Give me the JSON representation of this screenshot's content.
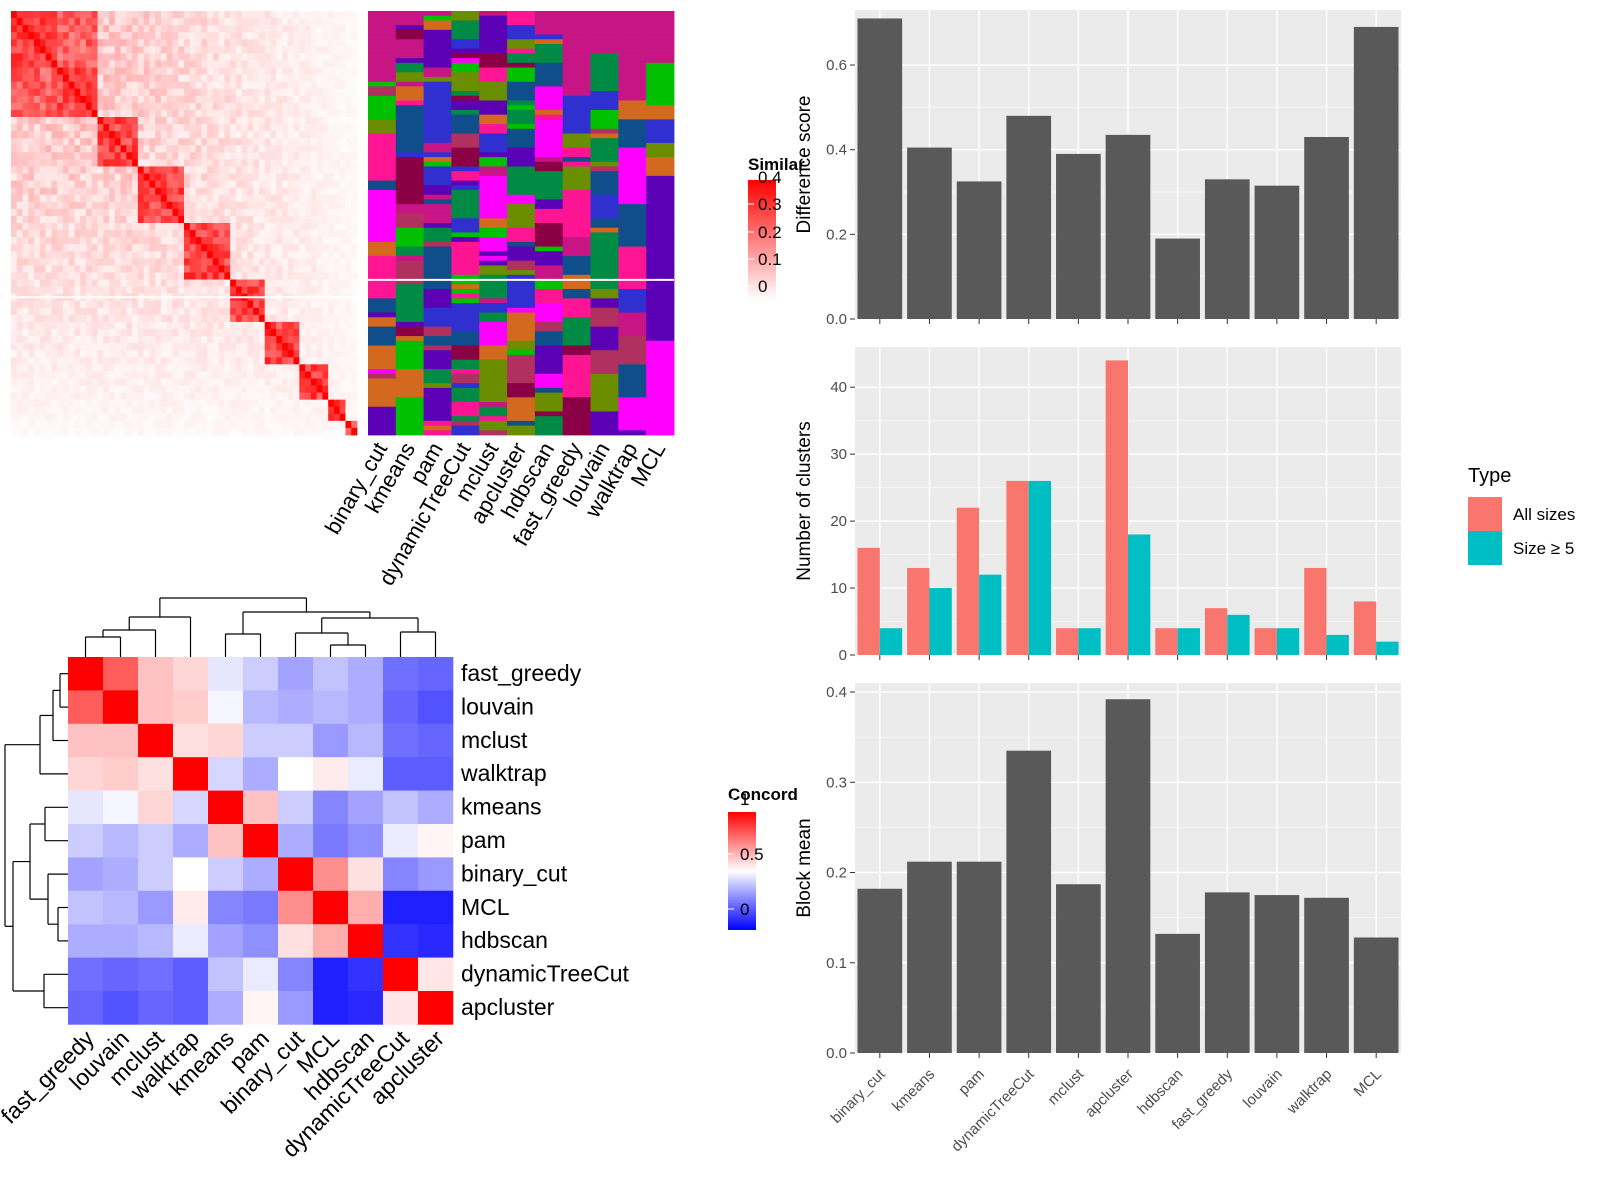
{
  "colors": {
    "sim_low": "#ffffff",
    "sim_high": "#ff0000",
    "conc_low": "#0000ff",
    "conc_mid": "#ffffff",
    "conc_high": "#ff0000",
    "bar_dark": "#595959",
    "panel_bg": "#ebebeb",
    "all_sizes": "#f8766d",
    "size5": "#00bfc4",
    "cluster_palette": [
      "#c71585",
      "#8b0045",
      "#5b00b5",
      "#6b8e00",
      "#d2691e",
      "#008b45",
      "#ff00ff",
      "#00c000",
      "#3030d0",
      "#104e8b",
      "#ff1493",
      "#b03060"
    ]
  },
  "similarity_legend": {
    "title": "Similar",
    "ticks": [
      "0.4",
      "0.3",
      "0.2",
      "0.1",
      "0"
    ]
  },
  "concordance_legend": {
    "title": "Concord",
    "ticks": [
      "1",
      "0.5",
      "0"
    ]
  },
  "partition_methods": [
    "binary_cut",
    "kmeans",
    "pam",
    "dynamicTreeCut",
    "mclust",
    "apcluster",
    "hdbscan",
    "fast_greedy",
    "louvain",
    "walktrap",
    "MCL"
  ],
  "concordance_methods": [
    "fast_greedy",
    "louvain",
    "mclust",
    "walktrap",
    "kmeans",
    "pam",
    "binary_cut",
    "MCL",
    "hdbscan",
    "dynamicTreeCut",
    "apcluster"
  ],
  "concordance_matrix": [
    [
      1.0,
      0.82,
      0.62,
      0.58,
      0.45,
      0.4,
      0.32,
      0.38,
      0.34,
      0.22,
      0.2
    ],
    [
      0.82,
      1.0,
      0.62,
      0.6,
      0.48,
      0.36,
      0.34,
      0.36,
      0.34,
      0.2,
      0.16
    ],
    [
      0.62,
      0.62,
      1.0,
      0.56,
      0.58,
      0.4,
      0.4,
      0.3,
      0.36,
      0.22,
      0.2
    ],
    [
      0.58,
      0.6,
      0.56,
      1.0,
      0.42,
      0.34,
      0.5,
      0.54,
      0.46,
      0.18,
      0.18
    ],
    [
      0.45,
      0.48,
      0.58,
      0.42,
      1.0,
      0.62,
      0.4,
      0.26,
      0.32,
      0.38,
      0.34
    ],
    [
      0.4,
      0.36,
      0.4,
      0.34,
      0.62,
      1.0,
      0.34,
      0.24,
      0.28,
      0.46,
      0.52
    ],
    [
      0.32,
      0.34,
      0.4,
      0.5,
      0.4,
      0.34,
      1.0,
      0.72,
      0.56,
      0.26,
      0.3
    ],
    [
      0.38,
      0.36,
      0.3,
      0.54,
      0.26,
      0.24,
      0.72,
      1.0,
      0.66,
      0.06,
      0.06
    ],
    [
      0.34,
      0.34,
      0.36,
      0.46,
      0.32,
      0.28,
      0.56,
      0.66,
      1.0,
      0.1,
      0.08
    ],
    [
      0.22,
      0.2,
      0.22,
      0.18,
      0.38,
      0.46,
      0.26,
      0.06,
      0.1,
      1.0,
      0.55
    ],
    [
      0.2,
      0.16,
      0.2,
      0.18,
      0.34,
      0.52,
      0.3,
      0.06,
      0.08,
      0.55,
      1.0
    ]
  ],
  "chart_data": [
    {
      "type": "heatmap",
      "title": "",
      "legend_title": "Similar",
      "range": [
        0,
        0.4
      ],
      "note_values": "symmetric similarity matrix, block-diagonal structure"
    },
    {
      "type": "heatmap",
      "title": "",
      "columns": [
        "binary_cut",
        "kmeans",
        "pam",
        "dynamicTreeCut",
        "mclust",
        "apcluster",
        "hdbscan",
        "fast_greedy",
        "louvain",
        "walktrap",
        "MCL"
      ]
    },
    {
      "type": "heatmap",
      "title": "",
      "legend_title": "Concord",
      "range": [
        0,
        1
      ]
    },
    {
      "type": "bar",
      "ylabel": "Difference score",
      "categories": [
        "binary_cut",
        "kmeans",
        "pam",
        "dynamicTreeCut",
        "mclust",
        "apcluster",
        "hdbscan",
        "fast_greedy",
        "louvain",
        "walktrap",
        "MCL"
      ],
      "values": [
        0.71,
        0.405,
        0.325,
        0.48,
        0.39,
        0.435,
        0.19,
        0.33,
        0.315,
        0.43,
        0.69
      ],
      "ylim": [
        0,
        0.73
      ],
      "yticks": [
        "0.0",
        "0.2",
        "0.4",
        "0.6"
      ],
      "ytick_values": [
        0,
        0.2,
        0.4,
        0.6
      ]
    },
    {
      "type": "bar",
      "ylabel": "Number of clusters",
      "categories": [
        "binary_cut",
        "kmeans",
        "pam",
        "dynamicTreeCut",
        "mclust",
        "apcluster",
        "hdbscan",
        "fast_greedy",
        "louvain",
        "walktrap",
        "MCL"
      ],
      "series": [
        {
          "name": "All sizes",
          "values": [
            16,
            13,
            22,
            26,
            4,
            44,
            4,
            7,
            4,
            13,
            8
          ]
        },
        {
          "name": "Size ≥ 5",
          "values": [
            4,
            10,
            12,
            26,
            4,
            18,
            4,
            6,
            4,
            3,
            2
          ]
        }
      ],
      "ylim": [
        0,
        46
      ],
      "yticks": [
        "0",
        "10",
        "20",
        "30",
        "40"
      ],
      "ytick_values": [
        0,
        10,
        20,
        30,
        40
      ],
      "legend_title": "Type",
      "legend_position": "right"
    },
    {
      "type": "bar",
      "ylabel": "Block mean",
      "categories": [
        "binary_cut",
        "kmeans",
        "pam",
        "dynamicTreeCut",
        "mclust",
        "apcluster",
        "hdbscan",
        "fast_greedy",
        "louvain",
        "walktrap",
        "MCL"
      ],
      "values": [
        0.182,
        0.212,
        0.212,
        0.335,
        0.187,
        0.392,
        0.132,
        0.178,
        0.175,
        0.172,
        0.128
      ],
      "ylim": [
        0,
        0.41
      ],
      "yticks": [
        "0.0",
        "0.1",
        "0.2",
        "0.3",
        "0.4"
      ],
      "ytick_values": [
        0,
        0.1,
        0.2,
        0.3,
        0.4
      ]
    }
  ]
}
